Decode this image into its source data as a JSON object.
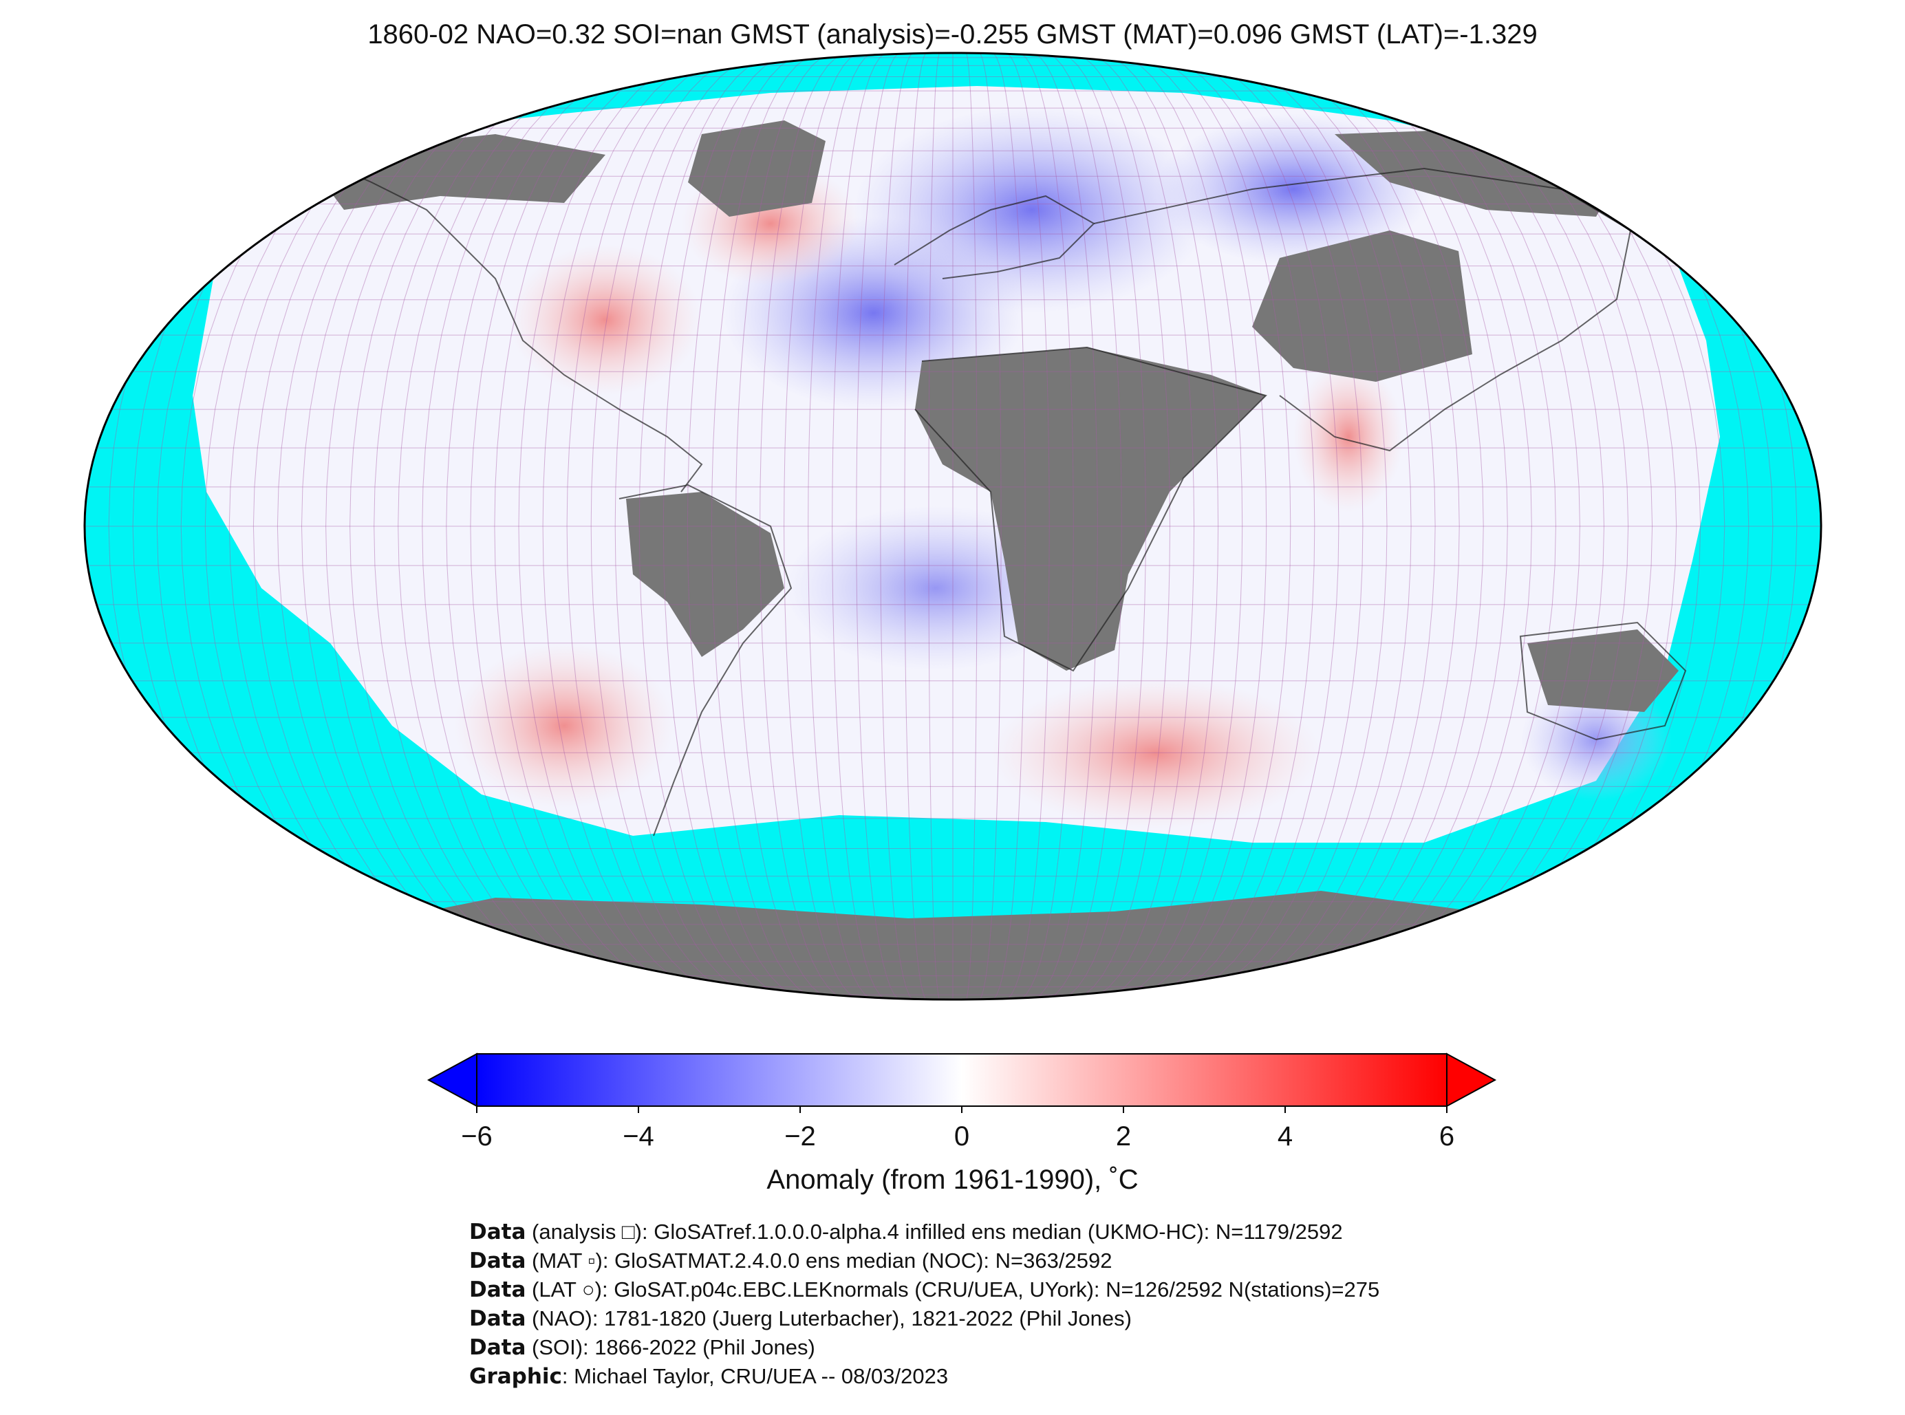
{
  "title": "1860-02 NAO=0.32 SOI=nan GMST (analysis)=-0.255 GMST (MAT)=0.096 GMST (LAT)=-1.329",
  "colors": {
    "ocean_missing": "#00f4f4",
    "land_missing": "#777777",
    "grid": "#a65aa6",
    "scale_min": "#0000ff",
    "scale_mid": "#ffffff",
    "scale_max": "#ff0000"
  },
  "colorbar": {
    "ticks": [
      "−6",
      "−4",
      "−2",
      "0",
      "2",
      "4",
      "6"
    ],
    "label": "Anomaly (from 1961-1990), ˚C"
  },
  "credits": [
    {
      "key": "Data",
      "text": " (analysis □): GloSATref.1.0.0.0-alpha.4 infilled ens median (UKMO-HC): N=1179/2592"
    },
    {
      "key": "Data",
      "text": " (MAT ▫): GloSATMAT.2.4.0.0 ens median (NOC): N=363/2592"
    },
    {
      "key": "Data",
      "text": " (LAT ○): GloSAT.p04c.EBC.LEKnormals (CRU/UEA, UYork): N=126/2592 N(stations)=275"
    },
    {
      "key": "Data",
      "text": " (NAO): 1781-1820 (Juerg Luterbacher), 1821-2022 (Phil Jones)"
    },
    {
      "key": "Data",
      "text": " (SOI): 1866-2022 (Phil Jones)"
    },
    {
      "key": "Graphic",
      "text": ": Michael Taylor, CRU/UEA -- 08/03/2023"
    }
  ]
}
